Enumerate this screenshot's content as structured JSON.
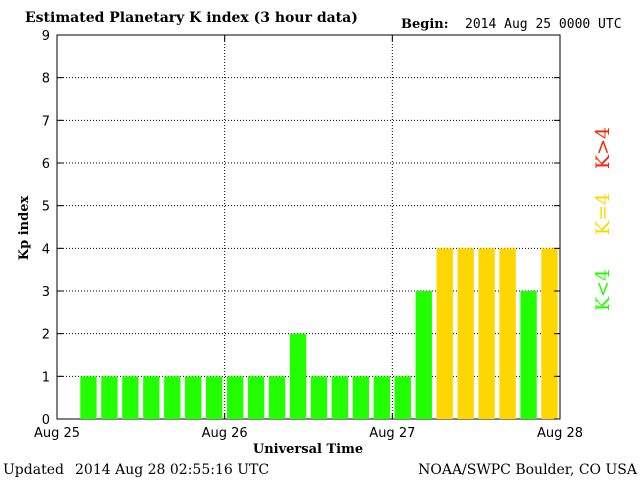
{
  "header": {
    "title": "Estimated Planetary K index (3 hour data)",
    "begin_label": "Begin:",
    "begin_value": "2014 Aug 25 0000 UTC"
  },
  "footer": {
    "updated_label": "Updated",
    "updated_value": "2014 Aug 28 02:55:16 UTC",
    "source": "NOAA/SWPC Boulder, CO USA"
  },
  "legend": {
    "low": {
      "label": "K<4",
      "color": "#22ff00"
    },
    "mid": {
      "label": "K=4",
      "color": "#ffd700"
    },
    "high": {
      "label": "K>4",
      "color": "#ff2200"
    }
  },
  "chart_data": {
    "type": "bar",
    "ylabel": "Kp index",
    "xlabel": "Universal Time",
    "ylim": [
      0,
      9
    ],
    "yticks": [
      "0",
      "1",
      "2",
      "3",
      "4",
      "5",
      "6",
      "7",
      "8",
      "9"
    ],
    "xlim_days": [
      0,
      3
    ],
    "xticks": [
      "Aug 25",
      "Aug 26",
      "Aug 27",
      "Aug 28"
    ],
    "grid": true,
    "interval_hours": 3,
    "values": [
      1,
      1,
      1,
      1,
      1,
      1,
      1,
      1,
      1,
      1,
      2,
      1,
      1,
      1,
      1,
      1,
      3,
      4,
      4,
      4,
      4,
      3,
      4
    ],
    "colors": {
      "below4": "#22ff00",
      "equal4": "#ffd700",
      "above4": "#ff2200"
    }
  }
}
